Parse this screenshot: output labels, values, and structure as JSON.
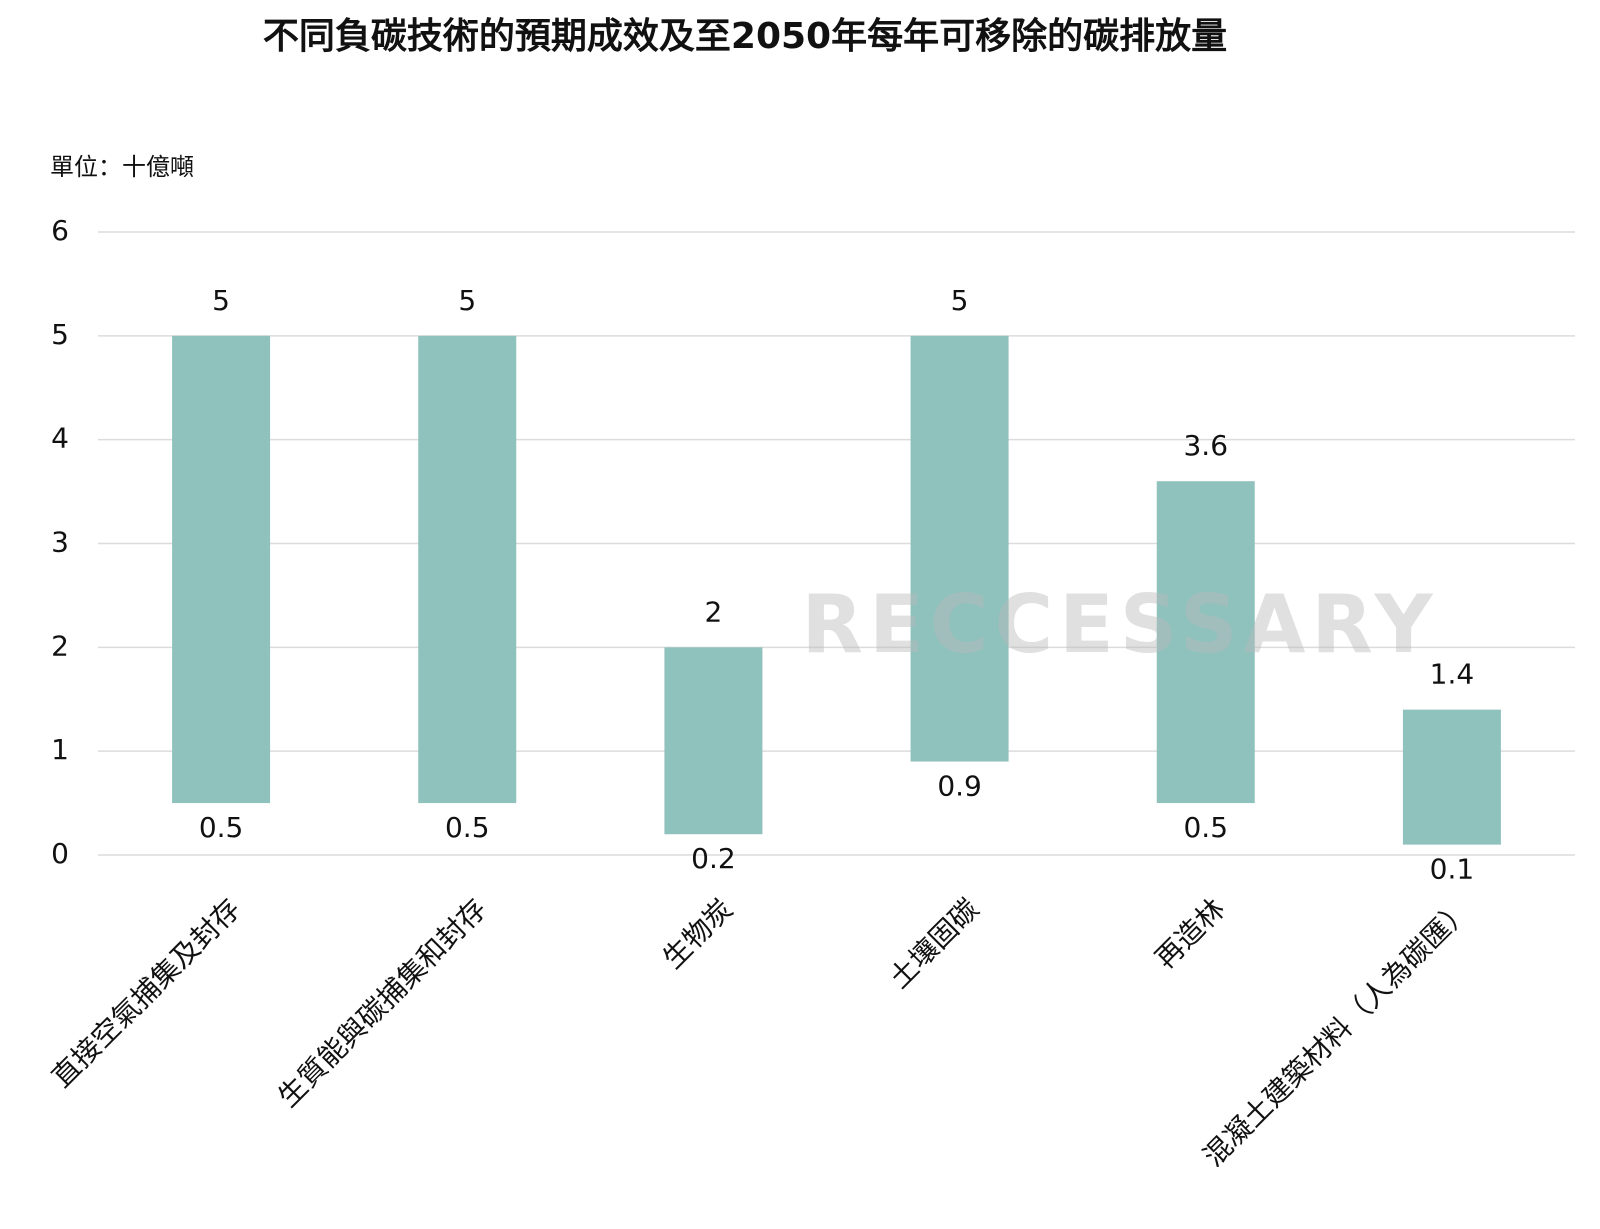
{
  "chart_data": {
    "type": "range_bar",
    "title": "不同負碳技術的預期成效及至2050年每年可移除的碳排放量",
    "unit_label": "單位：十億噸",
    "watermark": "RECCESSARY",
    "categories": [
      "直接空氣捕集及封存",
      "生質能與碳捕集和封存",
      "生物炭",
      "土壤固碳",
      "再造林",
      "混凝土建築材料（人為碳匯）"
    ],
    "low": [
      0.5,
      0.5,
      0.2,
      0.9,
      0.5,
      0.1
    ],
    "high": [
      5,
      5,
      2,
      5,
      3.6,
      1.4
    ],
    "color": "#8fc1bd",
    "ylim": [
      0,
      6
    ],
    "yticks": [
      0,
      1,
      2,
      3,
      4,
      5,
      6
    ],
    "grid": true
  }
}
